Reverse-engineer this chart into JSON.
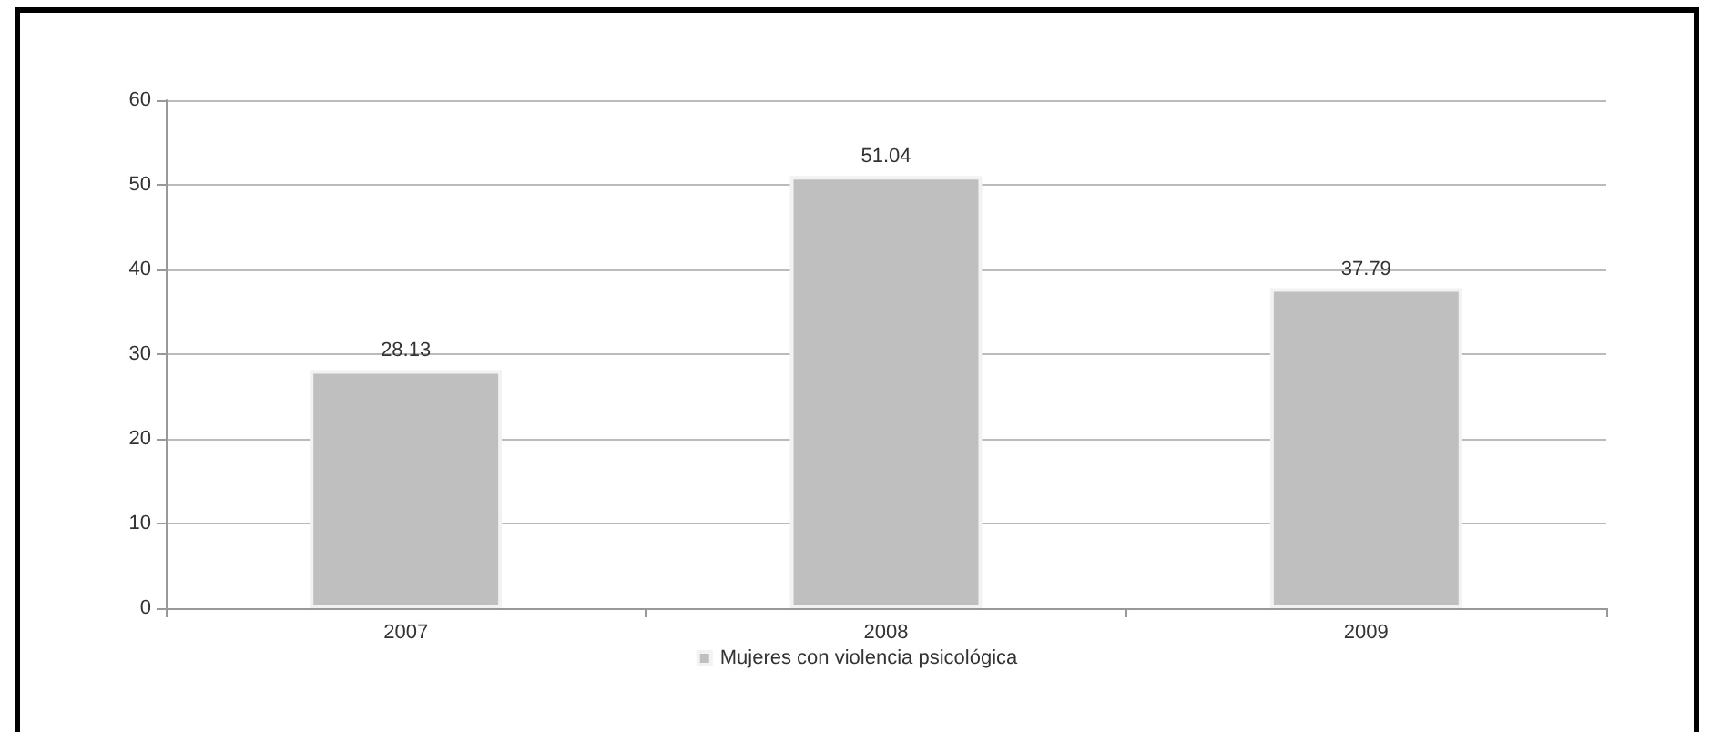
{
  "chart_data": {
    "type": "bar",
    "categories": [
      "2007",
      "2008",
      "2009"
    ],
    "series": [
      {
        "name": "Mujeres con violencia psicológica",
        "color": "#bfbfbf",
        "values": [
          28.13,
          51.04,
          37.79
        ]
      }
    ],
    "ylim": [
      0,
      60
    ],
    "yticks": [
      0,
      10,
      20,
      30,
      40,
      50,
      60
    ],
    "grid": "y",
    "legend": "bottom",
    "data_labels": true
  }
}
